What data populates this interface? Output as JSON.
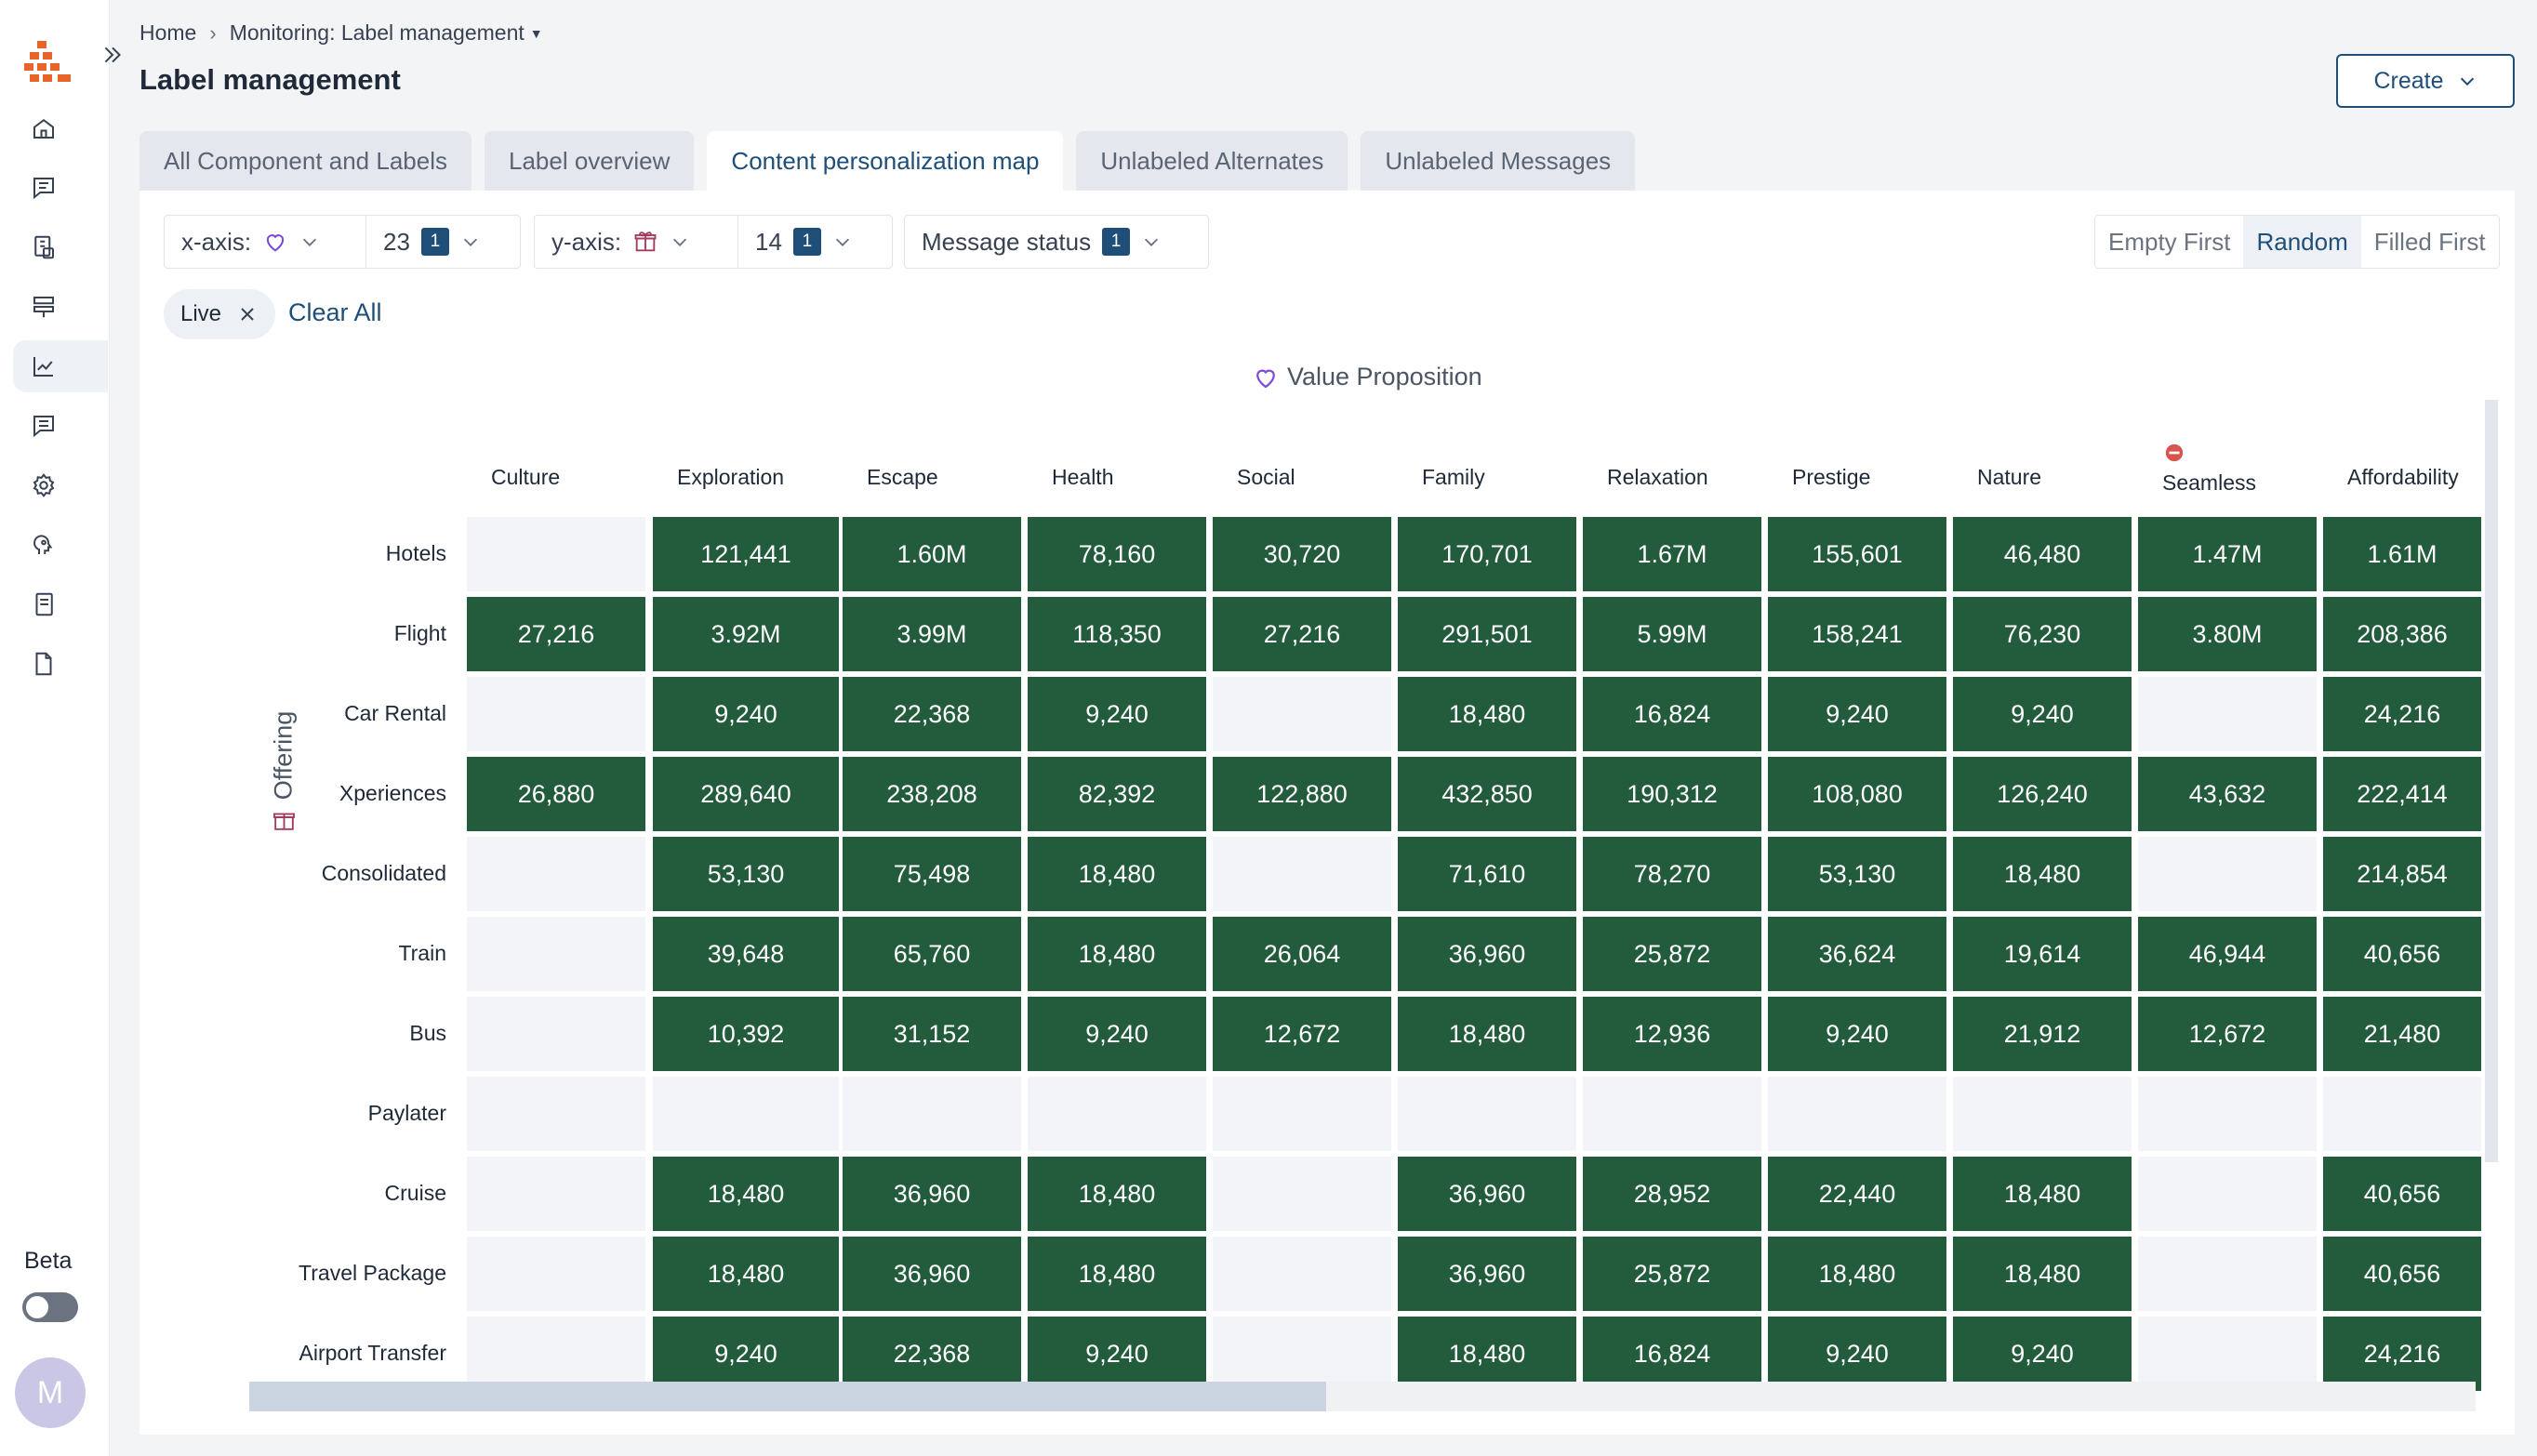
{
  "breadcrumb": {
    "home": "Home",
    "current": "Monitoring: Label management"
  },
  "page": {
    "title": "Label management",
    "create_label": "Create"
  },
  "sidebar": {
    "beta_label": "Beta",
    "avatar_initial": "M"
  },
  "tabs": [
    {
      "label": "All Component and Labels"
    },
    {
      "label": "Label overview"
    },
    {
      "label": "Content personalization map"
    },
    {
      "label": "Unlabeled Alternates"
    },
    {
      "label": "Unlabeled Messages"
    }
  ],
  "filters": {
    "x_axis_label": "x-axis:",
    "x_axis_icon": "heart-icon",
    "x_count": "23",
    "x_badge": "1",
    "y_axis_label": "y-axis:",
    "y_axis_icon": "gift-icon",
    "y_count": "14",
    "y_badge": "1",
    "status_label": "Message status",
    "status_badge": "1"
  },
  "sort_options": [
    "Empty First",
    "Random",
    "Filled First"
  ],
  "active_sort": "Random",
  "chip": {
    "label": "Live",
    "clear_all": "Clear All"
  },
  "x_axis_title": "Value Proposition",
  "y_axis_title": "Offering",
  "colors": {
    "filled": "#235c3d",
    "empty": "#f2f4f7",
    "accent": "#1f4e79"
  },
  "columns": [
    "Culture",
    "Exploration",
    "Escape",
    "Health",
    "Social",
    "Family",
    "Relaxation",
    "Prestige",
    "Nature",
    "Seamless",
    "Affordability"
  ],
  "rows": [
    {
      "label": "Hotels",
      "cells": [
        "",
        "121,441",
        "1.60M",
        "78,160",
        "30,720",
        "170,701",
        "1.67M",
        "155,601",
        "46,480",
        "1.47M",
        "1.61M"
      ]
    },
    {
      "label": "Flight",
      "cells": [
        "27,216",
        "3.92M",
        "3.99M",
        "118,350",
        "27,216",
        "291,501",
        "5.99M",
        "158,241",
        "76,230",
        "3.80M",
        "208,386"
      ]
    },
    {
      "label": "Car Rental",
      "cells": [
        "",
        "9,240",
        "22,368",
        "9,240",
        "",
        "18,480",
        "16,824",
        "9,240",
        "9,240",
        "",
        "24,216"
      ]
    },
    {
      "label": "Xperiences",
      "cells": [
        "26,880",
        "289,640",
        "238,208",
        "82,392",
        "122,880",
        "432,850",
        "190,312",
        "108,080",
        "126,240",
        "43,632",
        "222,414"
      ]
    },
    {
      "label": "Consolidated",
      "cells": [
        "",
        "53,130",
        "75,498",
        "18,480",
        "",
        "71,610",
        "78,270",
        "53,130",
        "18,480",
        "",
        "214,854"
      ]
    },
    {
      "label": "Train",
      "cells": [
        "",
        "39,648",
        "65,760",
        "18,480",
        "26,064",
        "36,960",
        "25,872",
        "36,624",
        "19,614",
        "46,944",
        "40,656"
      ]
    },
    {
      "label": "Bus",
      "cells": [
        "",
        "10,392",
        "31,152",
        "9,240",
        "12,672",
        "18,480",
        "12,936",
        "9,240",
        "21,912",
        "12,672",
        "21,480"
      ]
    },
    {
      "label": "Paylater",
      "cells": [
        "",
        "",
        "",
        "",
        "",
        "",
        "",
        "",
        "",
        "",
        ""
      ]
    },
    {
      "label": "Cruise",
      "cells": [
        "",
        "18,480",
        "36,960",
        "18,480",
        "",
        "36,960",
        "28,952",
        "22,440",
        "18,480",
        "",
        "40,656"
      ]
    },
    {
      "label": "Travel Package",
      "cells": [
        "",
        "18,480",
        "36,960",
        "18,480",
        "",
        "36,960",
        "25,872",
        "18,480",
        "18,480",
        "",
        "40,656"
      ]
    },
    {
      "label": "Airport Transfer",
      "cells": [
        "",
        "9,240",
        "22,368",
        "9,240",
        "",
        "18,480",
        "16,824",
        "9,240",
        "9,240",
        "",
        "24,216"
      ]
    }
  ]
}
